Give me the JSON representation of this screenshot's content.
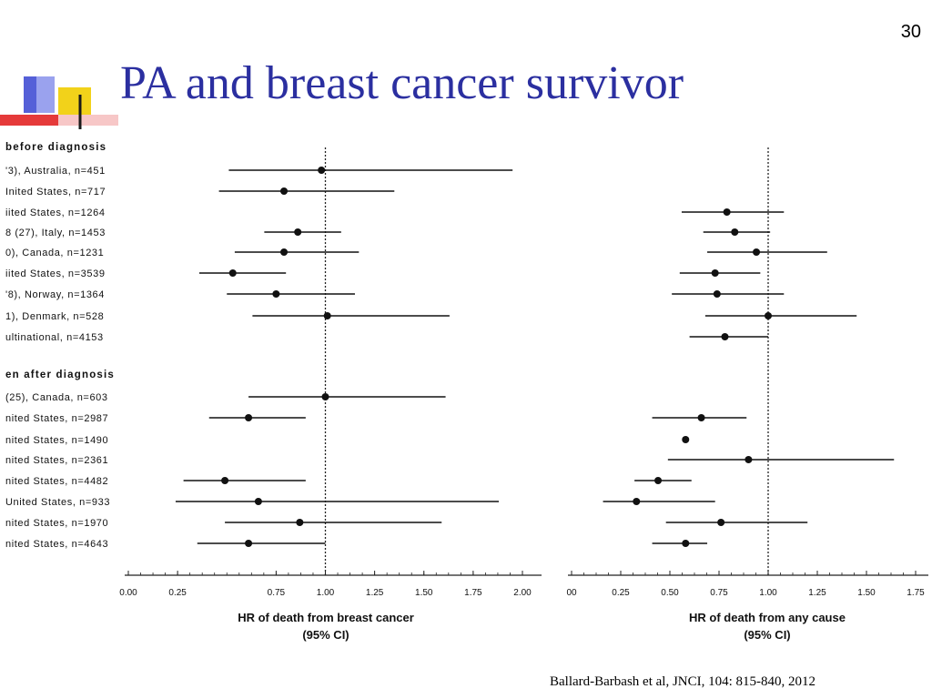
{
  "slide": {
    "number": "30",
    "title": "PA and breast cancer survivor",
    "citation": "Ballard-Barbash et al, JNCI, 104: 815-840, 2012",
    "title_color": "#2b2fa0"
  },
  "logo": {
    "icon": "slide-logo-icon",
    "colors": [
      "#5560d8",
      "#f2d21a",
      "#e53a3a",
      "#1a1a1a"
    ]
  },
  "chart_data": [
    {
      "type": "forest",
      "title": "",
      "xlabel": "HR of death from breast cancer\n(95% CI)",
      "ylabel": "",
      "xlim": [
        0,
        2.0
      ],
      "xticks": [
        "0.00",
        "0.25",
        "0.75",
        "1.00",
        "1.25",
        "1.50",
        "1.75",
        "2.00"
      ],
      "reference_line": 1.0,
      "groups": [
        {
          "label": "before diagnosis",
          "rows": [
            {
              "label": "'3), Australia, n=451",
              "hr": 0.98,
              "lo": 0.51,
              "hi": 1.95
            },
            {
              "label": "Inited States, n=717",
              "hr": 0.79,
              "lo": 0.46,
              "hi": 1.35
            },
            {
              "label": "iited States, n=1264",
              "hr": null,
              "lo": null,
              "hi": null
            },
            {
              "label": "8 (27), Italy, n=1453",
              "hr": 0.86,
              "lo": 0.69,
              "hi": 1.08
            },
            {
              "label": "0), Canada, n=1231",
              "hr": 0.79,
              "lo": 0.54,
              "hi": 1.17
            },
            {
              "label": "iited States, n=3539",
              "hr": 0.53,
              "lo": 0.36,
              "hi": 0.8
            },
            {
              "label": "'8), Norway, n=1364",
              "hr": 0.75,
              "lo": 0.5,
              "hi": 1.15
            },
            {
              "label": "1), Denmark, n=528",
              "hr": 1.01,
              "lo": 0.63,
              "hi": 1.63
            },
            {
              "label": "ultinational, n=4153",
              "hr": null,
              "lo": null,
              "hi": null
            }
          ]
        },
        {
          "label": "en after diagnosis",
          "rows": [
            {
              "label": "(25), Canada, n=603",
              "hr": 1.0,
              "lo": 0.61,
              "hi": 1.61
            },
            {
              "label": "nited States, n=2987",
              "hr": 0.61,
              "lo": 0.41,
              "hi": 0.9
            },
            {
              "label": "nited States, n=1490",
              "hr": null,
              "lo": null,
              "hi": null
            },
            {
              "label": "nited States, n=2361",
              "hr": null,
              "lo": null,
              "hi": null
            },
            {
              "label": "nited States, n=4482",
              "hr": 0.49,
              "lo": 0.28,
              "hi": 0.9
            },
            {
              "label": "United States, n=933",
              "hr": 0.66,
              "lo": 0.24,
              "hi": 1.88
            },
            {
              "label": "nited States, n=1970",
              "hr": 0.87,
              "lo": 0.49,
              "hi": 1.59
            },
            {
              "label": "nited States, n=4643",
              "hr": 0.61,
              "lo": 0.35,
              "hi": 1.0
            }
          ]
        }
      ]
    },
    {
      "type": "forest",
      "title": "",
      "xlabel": "HR of death from any cause\n(95% CI)",
      "ylabel": "",
      "xlim": [
        0,
        1.75
      ],
      "xticks": [
        "00",
        "0.25",
        "0.50",
        "0.75",
        "1.00",
        "1.25",
        "1.50",
        "1.75"
      ],
      "reference_line": 1.0,
      "groups": [
        {
          "label": "before diagnosis",
          "rows": [
            {
              "hr": null,
              "lo": null,
              "hi": null
            },
            {
              "hr": null,
              "lo": null,
              "hi": null
            },
            {
              "hr": 0.79,
              "lo": 0.56,
              "hi": 1.08
            },
            {
              "hr": 0.83,
              "lo": 0.67,
              "hi": 1.01
            },
            {
              "hr": 0.94,
              "lo": 0.69,
              "hi": 1.3
            },
            {
              "hr": 0.73,
              "lo": 0.55,
              "hi": 0.96
            },
            {
              "hr": 0.74,
              "lo": 0.51,
              "hi": 1.08
            },
            {
              "hr": 1.0,
              "lo": 0.68,
              "hi": 1.45
            },
            {
              "hr": 0.78,
              "lo": 0.6,
              "hi": 1.0
            }
          ]
        },
        {
          "label": "en after diagnosis",
          "rows": [
            {
              "hr": null,
              "lo": null,
              "hi": null
            },
            {
              "hr": 0.66,
              "lo": 0.41,
              "hi": 0.89
            },
            {
              "hr": 0.58,
              "lo": 0.58,
              "hi": 0.58
            },
            {
              "hr": 0.9,
              "lo": 0.49,
              "hi": 1.64
            },
            {
              "hr": 0.44,
              "lo": 0.32,
              "hi": 0.61
            },
            {
              "hr": 0.33,
              "lo": 0.16,
              "hi": 0.73
            },
            {
              "hr": 0.76,
              "lo": 0.48,
              "hi": 1.2
            },
            {
              "hr": 0.58,
              "lo": 0.41,
              "hi": 0.69
            }
          ]
        }
      ]
    }
  ]
}
